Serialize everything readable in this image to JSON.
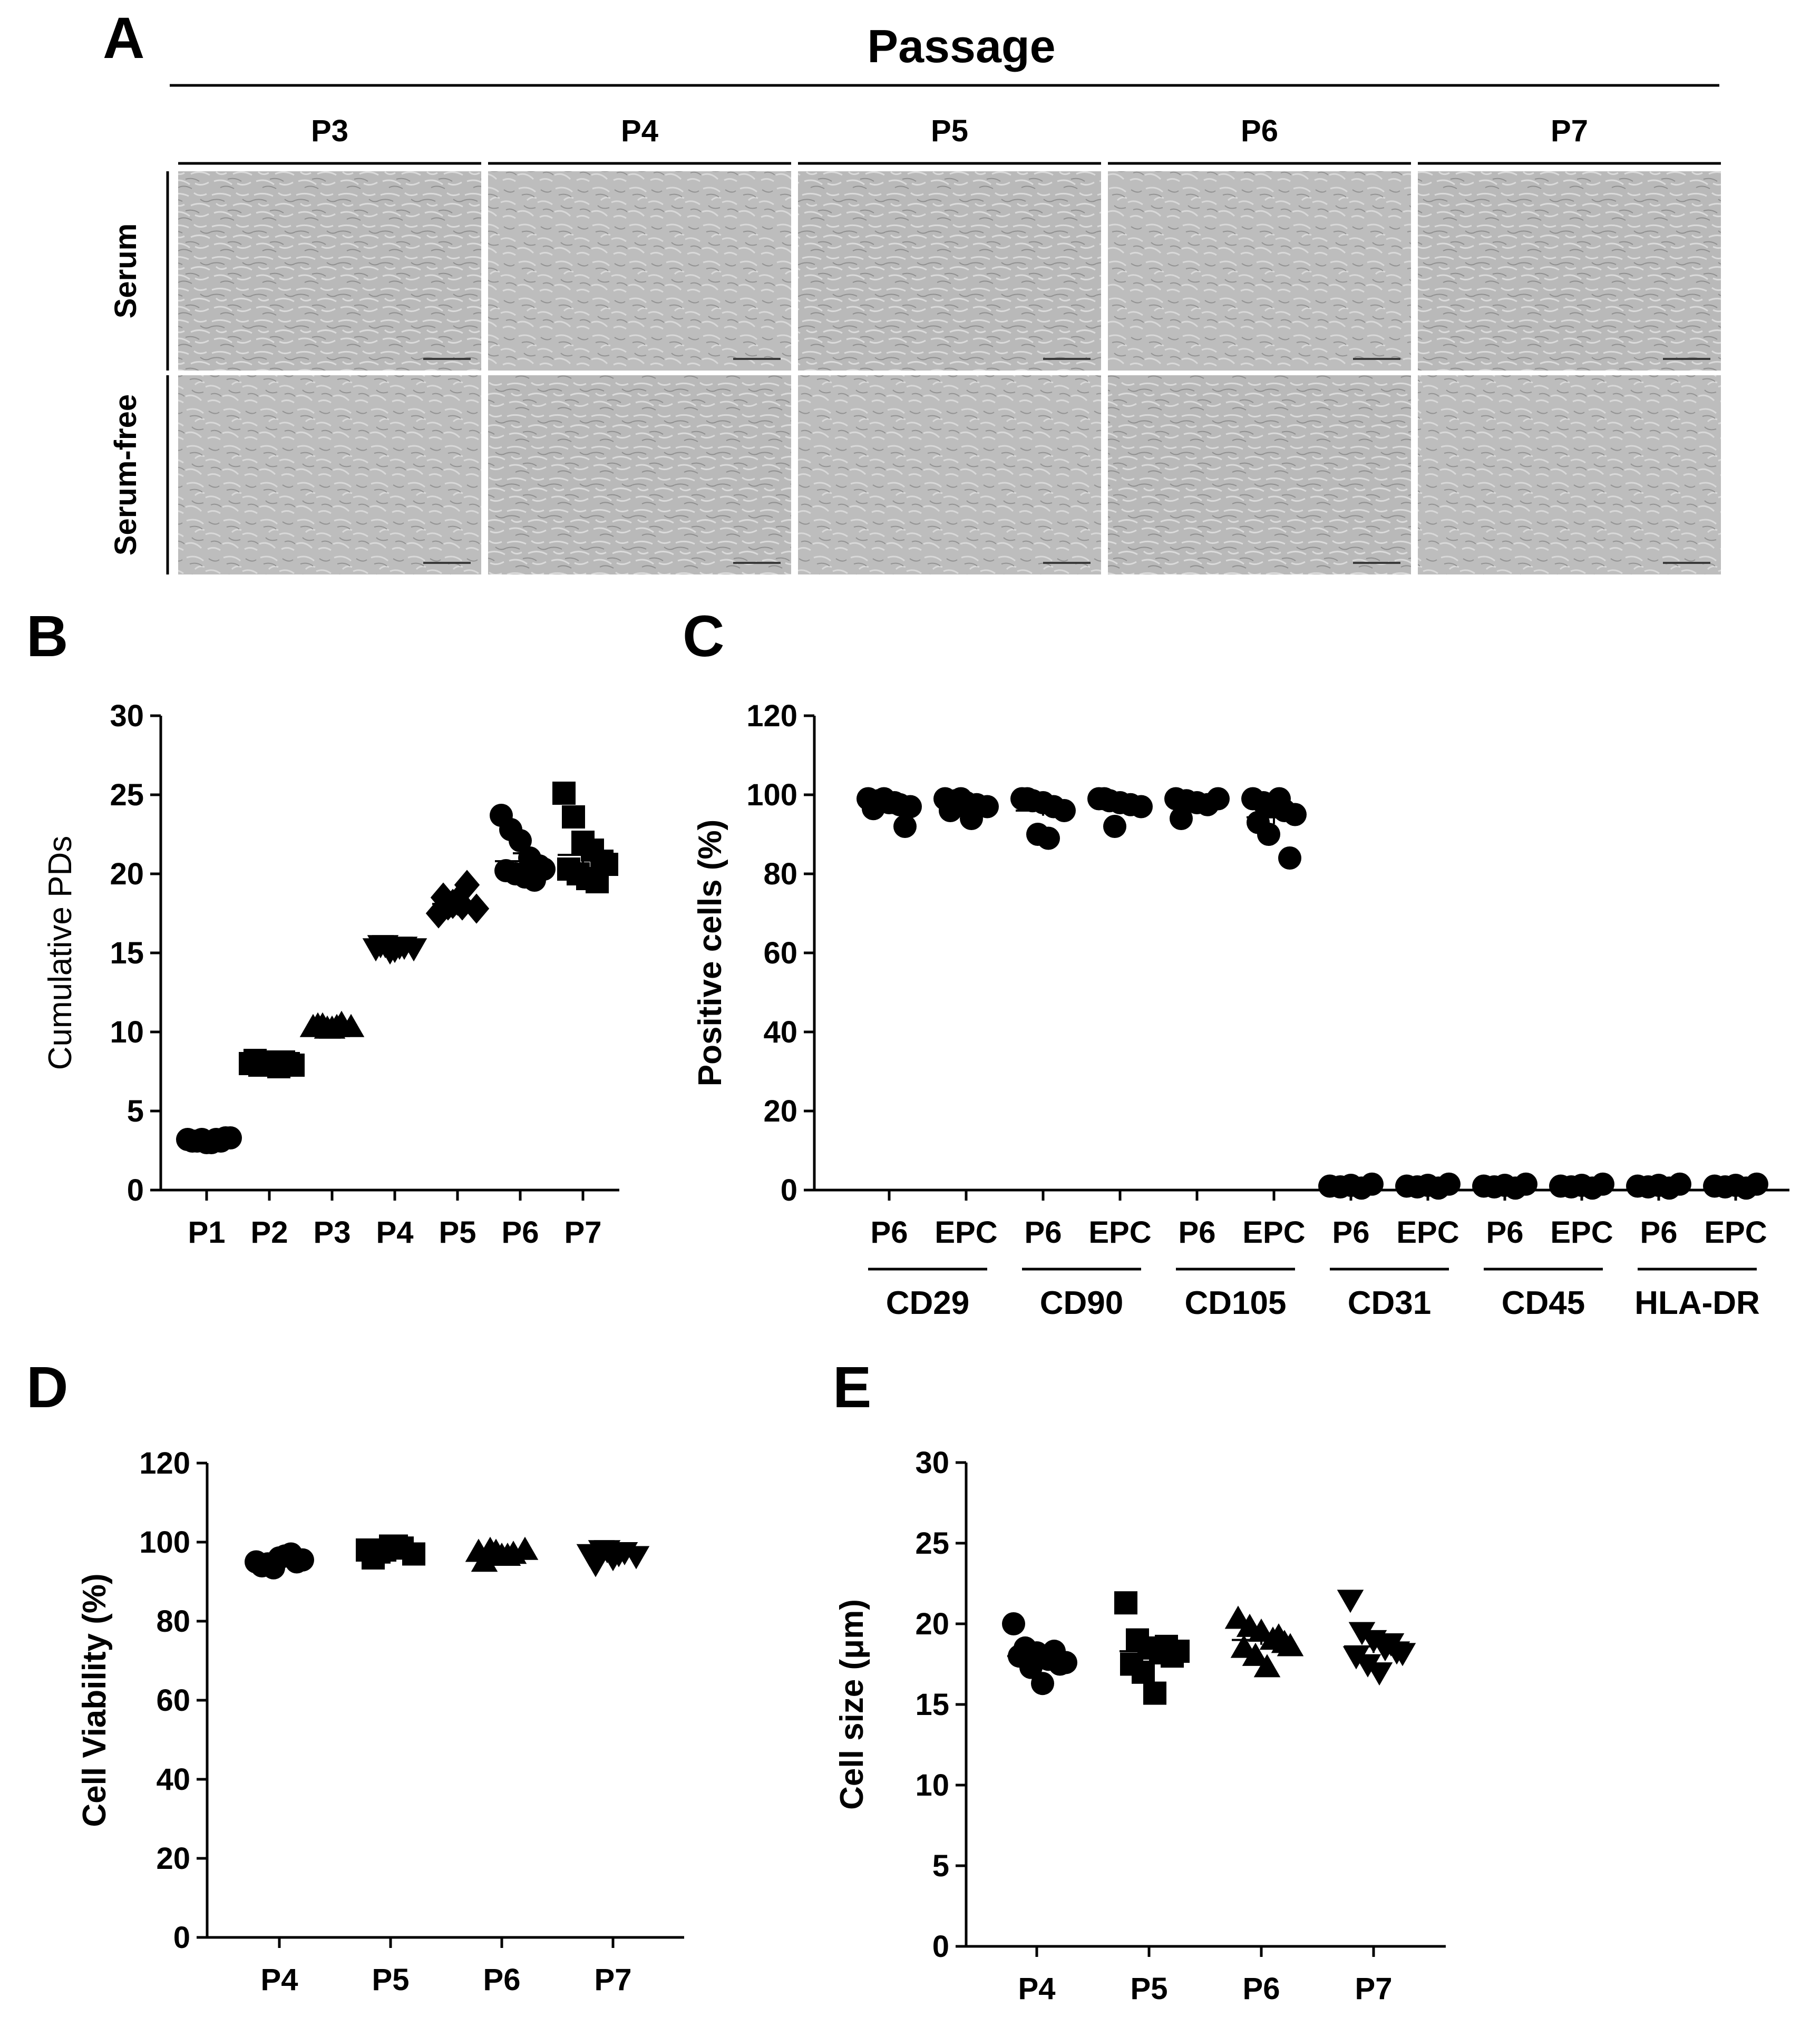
{
  "panelA": {
    "letter": "A",
    "header": "Passage",
    "columns": [
      "P3",
      "P4",
      "P5",
      "P6",
      "P7"
    ],
    "rows": [
      "Serum",
      "Serum-free"
    ]
  },
  "chart_data": [
    {
      "panel": "B",
      "type": "scatter",
      "title": "",
      "xlabel": "",
      "ylabel": "Cumulative PDs",
      "ylim": [
        0,
        30
      ],
      "yticks": [
        0,
        5,
        10,
        15,
        20,
        25,
        30
      ],
      "categories": [
        "P1",
        "P2",
        "P3",
        "P4",
        "P5",
        "P6",
        "P7"
      ],
      "markers": [
        "circle",
        "square",
        "triangle",
        "triangle-down",
        "diamond",
        "circle",
        "square"
      ],
      "points": [
        [
          3.2,
          3.1,
          3.0,
          3.2,
          3.3,
          3.1,
          3.2,
          3.0,
          3.1,
          3.3
        ],
        [
          8.0,
          7.9,
          8.1,
          7.8,
          8.0,
          8.2,
          7.9,
          8.0,
          8.1,
          7.9
        ],
        [
          10.3,
          10.4,
          10.2,
          10.5,
          10.3,
          10.4,
          10.2,
          10.3
        ],
        [
          15.3,
          15.5,
          15.2,
          15.4,
          15.3,
          15.5,
          15.1,
          15.4
        ],
        [
          17.5,
          18.0,
          18.3,
          19.3,
          17.8,
          18.5,
          18.1,
          18.0
        ],
        [
          23.7,
          22.8,
          22.1,
          21.0,
          20.5,
          20.2,
          20.0,
          19.8,
          19.6,
          20.3
        ],
        [
          25.1,
          23.6,
          22.0,
          21.5,
          20.8,
          20.3,
          20.0,
          19.7,
          19.5,
          20.6
        ]
      ],
      "means": [
        3.1,
        8.0,
        10.4,
        15.3,
        18.1,
        20.8,
        21.2
      ],
      "sem": [
        0.1,
        0.1,
        0.1,
        0.1,
        0.3,
        0.5,
        0.6
      ]
    },
    {
      "panel": "C",
      "type": "scatter",
      "title": "",
      "xlabel": "",
      "ylabel": "Positive cells (%)",
      "ylim": [
        0,
        120
      ],
      "yticks": [
        0,
        20,
        40,
        60,
        80,
        100,
        120
      ],
      "categories": [
        "P6",
        "EPC",
        "P6",
        "EPC",
        "P6",
        "EPC",
        "P6",
        "EPC",
        "P6",
        "EPC",
        "P6",
        "EPC"
      ],
      "groups": [
        "CD29",
        "CD90",
        "CD105",
        "CD31",
        "CD45",
        "HLA-DR"
      ],
      "markers": [
        "circle"
      ],
      "points": [
        [
          99,
          98.5,
          98,
          97.5,
          97,
          96.5,
          99,
          98,
          92
        ],
        [
          99,
          98.5,
          98,
          97.5,
          97,
          96,
          99,
          94
        ],
        [
          99,
          98.5,
          98,
          97,
          96,
          99,
          90,
          89
        ],
        [
          99,
          98.5,
          98,
          97.5,
          97,
          99,
          92
        ],
        [
          99,
          98.5,
          98,
          97.5,
          99,
          94
        ],
        [
          99,
          98,
          97,
          96,
          95,
          93,
          90,
          99,
          84
        ],
        [
          1,
          0.8,
          1.2,
          0.5,
          1.5
        ],
        [
          1,
          0.8,
          1.2,
          0.5,
          1.5
        ],
        [
          1,
          0.8,
          1.2,
          0.5,
          1.5
        ],
        [
          1,
          0.8,
          1.2,
          0.5,
          1.5
        ],
        [
          1,
          0.8,
          1.2,
          0.5,
          1.5
        ],
        [
          1,
          0.8,
          1.2,
          0.5,
          1.5
        ]
      ],
      "means": [
        97.5,
        97.8,
        96.0,
        97.9,
        97.8,
        94.3,
        1.0,
        1.0,
        1.0,
        1.0,
        1.0,
        1.0
      ],
      "sem": [
        0.7,
        0.6,
        1.3,
        0.9,
        0.7,
        1.7,
        0.1,
        0.1,
        0.1,
        0.1,
        0.1,
        0.1
      ]
    },
    {
      "panel": "D",
      "type": "scatter",
      "title": "",
      "xlabel": "",
      "ylabel": "Cell Viability (%)",
      "ylim": [
        0,
        120
      ],
      "yticks": [
        0,
        20,
        40,
        60,
        80,
        100,
        120
      ],
      "categories": [
        "P4",
        "P5",
        "P6",
        "P7"
      ],
      "markers": [
        "circle",
        "square",
        "triangle",
        "triangle-down"
      ],
      "points": [
        [
          95,
          94.5,
          96,
          97,
          95.5,
          94,
          93.5,
          96.5,
          95
        ],
        [
          98,
          97.5,
          99,
          98.5,
          97,
          96,
          98,
          99
        ],
        [
          97.5,
          98,
          96.5,
          97,
          98,
          95,
          97.5,
          96.5
        ],
        [
          97,
          98,
          96,
          97.5,
          96.5,
          94.5,
          98,
          97
        ]
      ],
      "means": [
        95.5,
        97.6,
        97.0,
        96.8
      ],
      "sem": [
        0.4,
        0.3,
        0.3,
        0.4
      ]
    },
    {
      "panel": "E",
      "type": "scatter",
      "title": "",
      "xlabel": "",
      "ylabel": "Cell size (μm)",
      "ylim": [
        0,
        30
      ],
      "yticks": [
        0,
        5,
        10,
        15,
        20,
        25,
        30
      ],
      "categories": [
        "P4",
        "P5",
        "P6",
        "P7"
      ],
      "markers": [
        "circle",
        "square",
        "triangle",
        "triangle-down"
      ],
      "points": [
        [
          20.0,
          18.5,
          18.2,
          17.8,
          17.5,
          18.0,
          17.3,
          16.3,
          18.3,
          17.6
        ],
        [
          21.3,
          19.0,
          18.5,
          18.2,
          18.0,
          17.5,
          17.0,
          15.7,
          18.6,
          18.3
        ],
        [
          20.3,
          19.8,
          19.5,
          19.0,
          18.8,
          18.5,
          18.0,
          17.3,
          19.2,
          18.6
        ],
        [
          21.5,
          19.5,
          19.0,
          18.5,
          18.3,
          18.0,
          17.5,
          17.0,
          18.8,
          18.2
        ]
      ],
      "means": [
        18.0,
        18.3,
        19.0,
        18.6
      ],
      "sem": [
        0.3,
        0.4,
        0.3,
        0.4
      ]
    }
  ],
  "panel_letters": {
    "B": "B",
    "C": "C",
    "D": "D",
    "E": "E"
  }
}
